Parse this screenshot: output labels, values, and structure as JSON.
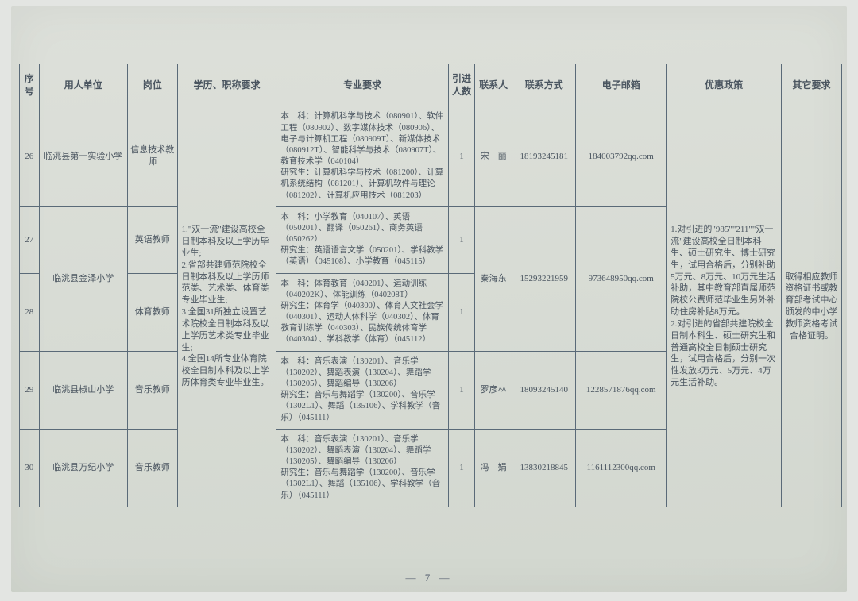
{
  "page_number": "— 7 —",
  "headers": {
    "seq": "序号",
    "unit": "用人单位",
    "post": "岗位",
    "edu": "学历、职称要求",
    "spec": "专业要求",
    "num": "引进人数",
    "contact": "联系人",
    "phone": "联系方式",
    "email": "电子邮箱",
    "policy": "优惠政策",
    "other": "其它要求"
  },
  "edu_requirement": "1.\"双一流\"建设高校全日制本科及以上学历毕业生;\n2.省部共建师范院校全日制本科及以上学历师范类、艺术类、体育类专业毕业生;\n3.全国31所独立设置艺术院校全日制本科及以上学历艺术类专业毕业生;\n4.全国14所专业体育院校全日制本科及以上学历体育类专业毕业生。",
  "policy_text": "1.对引进的\"985\"\"211\"\"双一流\"建设高校全日制本科生、硕士研究生、博士研究生，试用合格后，分别补助5万元、8万元、10万元生活补助，其中教育部直属师范院校公费师范毕业生另外补助住房补贴8万元。\n2.对引进的省部共建院校全日制本科生、硕士研究生和普通高校全日制硕士研究生，试用合格后，分别一次性发放3万元、5万元、4万元生活补助。",
  "other_text": "取得相应教师资格证书或教育部考试中心颁发的中小学教师资格考试合格证明。",
  "rows": [
    {
      "seq": "26",
      "unit": "临洮县第一实验小学",
      "post": "信息技术教师",
      "spec_bk": "本　科：计算机科学与技术（080901）、软件工程（080902）、数字媒体技术（080906）、电子与计算机工程（080909T）、新媒体技术（080912T）、智能科学与技术（080907T）、教育技术学（040104）",
      "spec_yjs": "研究生：计算机科学与技术（081200）、计算机系统结构（081201）、计算机软件与理论（081202）、计算机应用技术（081203）",
      "num": "1",
      "contact": "宋　丽",
      "phone": "18193245181",
      "email": "184003792qq.com"
    },
    {
      "seq": "27",
      "unit": "临洮县金泽小学",
      "post": "英语教师",
      "spec_bk": "本　科：小学教育（040107）、英语（050201）、翻译（050261）、商务英语（050262）",
      "spec_yjs": "研究生：英语语言文学（050201）、学科教学（英语）（045108）、小学教育（045115）",
      "num": "1",
      "contact": "秦海东",
      "phone": "15293221959",
      "email": "973648950qq.com"
    },
    {
      "seq": "28",
      "unit": "",
      "post": "体育教师",
      "spec_bk": "本　科：体育教育（040201）、运动训练（040202K）、体能训练（040208T）",
      "spec_yjs": "研究生：体育学（040300）、体育人文社会学（040301）、运动人体科学（040302）、体育教育训练学（040303）、民族传统体育学（040304）、学科教学（体育）（045112）",
      "num": "1",
      "contact": "",
      "phone": "",
      "email": ""
    },
    {
      "seq": "29",
      "unit": "临洮县椒山小学",
      "post": "音乐教师",
      "spec_bk": "本　科：音乐表演（130201）、音乐学（130202）、舞蹈表演（130204）、舞蹈学（130205）、舞蹈编导（130206）",
      "spec_yjs": "研究生：音乐与舞蹈学（130200）、音乐学（1302L1）、舞蹈（135106）、学科教学（音乐）（045111）",
      "num": "1",
      "contact": "罗彦林",
      "phone": "18093245140",
      "email": "1228571876qq.com"
    },
    {
      "seq": "30",
      "unit": "临洮县万纪小学",
      "post": "音乐教师",
      "spec_bk": "本　科：音乐表演（130201）、音乐学（130202）、舞蹈表演（130204）、舞蹈学（130205）、舞蹈编导（130206）",
      "spec_yjs": "研究生：音乐与舞蹈学（130200）、音乐学（1302L1）、舞蹈（135106）、学科教学（音乐）（045111）",
      "num": "1",
      "contact": "冯　娟",
      "phone": "13830218845",
      "email": "1161112300qq.com"
    }
  ],
  "styling": {
    "border_color": "#5a6a78",
    "text_color": "#4a5560",
    "background": "#d6dad4",
    "header_fontsize": 12,
    "body_fontsize": 11,
    "spec_fontsize": 10.5,
    "font_family": "SimSun"
  }
}
